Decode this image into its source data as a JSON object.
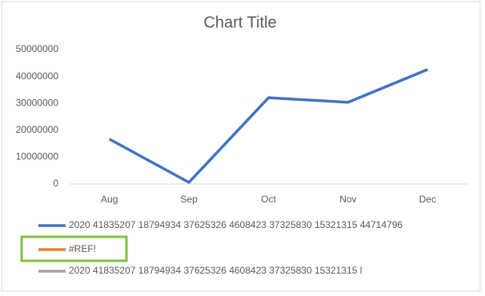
{
  "chart_data": {
    "type": "line",
    "title": "Chart Title",
    "categories": [
      "Aug",
      "Sep",
      "Oct",
      "Nov",
      "Dec"
    ],
    "series": [
      {
        "name": "2020 41835207 18794934 37625326 4608423 37325830 15321315 44714796",
        "color": "#4472c4",
        "values": [
          16700000,
          600000,
          32100000,
          30400000,
          42600000
        ]
      },
      {
        "name": "#REF!",
        "color": "#ed7d31",
        "values": [
          null,
          null,
          null,
          null,
          null
        ]
      },
      {
        "name": "2020 41835207 18794934 37625326 4608423 37325830 15321315 l",
        "color": "#a5a5a5",
        "values": [
          null,
          null,
          null,
          null,
          null
        ]
      }
    ],
    "ylim": [
      0,
      50000000
    ],
    "yticks": [
      0,
      10000000,
      20000000,
      30000000,
      40000000,
      50000000
    ],
    "grid": false
  }
}
